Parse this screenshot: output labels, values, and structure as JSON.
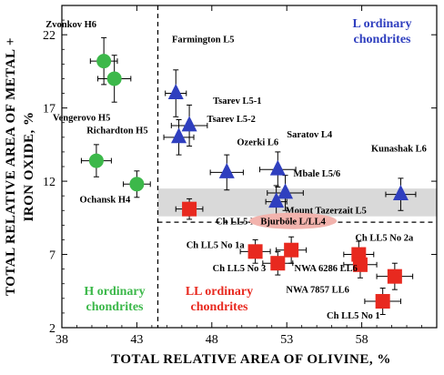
{
  "chart_data": {
    "type": "scatter",
    "xlabel": "TOTAL RELATIVE AREA OF OLIVINE, %",
    "ylabel_lines": [
      "TOTAL RELATIVE AREA OF METAL +",
      "IRON OXIDE, %"
    ],
    "xlim": [
      38,
      63
    ],
    "ylim": [
      2,
      24
    ],
    "xticks": [
      38,
      43,
      48,
      53,
      58
    ],
    "yticks": [
      2,
      7,
      12,
      17,
      22
    ],
    "grid": false,
    "reference_lines": {
      "vertical_x": 44.4,
      "horizontal_y": 9.2
    },
    "shaded_band": {
      "y_from": 9.6,
      "y_to": 11.5
    },
    "group_labels": [
      {
        "text_lines": [
          "H ordinary",
          "chondrites"
        ],
        "color": "#3cb84a"
      },
      {
        "text_lines": [
          "LL ordinary",
          "chondrites"
        ],
        "color": "#e8291f"
      },
      {
        "text_lines": [
          "L ordinary",
          "chondrites"
        ],
        "color": "#2f3fbf"
      }
    ],
    "series": [
      {
        "group": "H",
        "marker": "circle",
        "color": "#3cb84a",
        "points": [
          {
            "x": 40.8,
            "y": 20.2,
            "xerr": 0.9,
            "yerr": 1.6,
            "label": "Zvonkov H6"
          },
          {
            "x": 41.5,
            "y": 19.0,
            "xerr": 1.1,
            "yerr": 1.6,
            "label": "Vengerovo H5"
          },
          {
            "x": 40.3,
            "y": 13.4,
            "xerr": 1.0,
            "yerr": 1.1,
            "label": "Richardton H5"
          },
          {
            "x": 43.0,
            "y": 11.8,
            "xerr": 0.9,
            "yerr": 0.9,
            "label": "Ochansk H4"
          }
        ]
      },
      {
        "group": "L",
        "marker": "triangle",
        "color": "#2f3fbf",
        "points": [
          {
            "x": 45.6,
            "y": 18.0,
            "xerr": 0.7,
            "yerr": 1.6,
            "label": "Farmington L5"
          },
          {
            "x": 46.5,
            "y": 15.8,
            "xerr": 1.2,
            "yerr": 1.4,
            "label": "Tsarev L5-1"
          },
          {
            "x": 45.8,
            "y": 15.0,
            "xerr": 1.0,
            "yerr": 1.2,
            "label": "Tsarev L5-2"
          },
          {
            "x": 49.0,
            "y": 12.6,
            "xerr": 1.1,
            "yerr": 1.2,
            "label": "Ozerki L6"
          },
          {
            "x": 52.4,
            "y": 12.8,
            "xerr": 1.2,
            "yerr": 1.2,
            "label": "Saratov L4"
          },
          {
            "x": 52.9,
            "y": 11.2,
            "xerr": 1.2,
            "yerr": 1.2,
            "label": "Mbale L5/6"
          },
          {
            "x": 52.3,
            "y": 10.6,
            "xerr": 0.7,
            "yerr": 1.1,
            "label": "Mount Tazerzait L5"
          },
          {
            "x": 60.6,
            "y": 11.1,
            "xerr": 1.0,
            "yerr": 1.1,
            "label": "Kunashak L6"
          }
        ]
      },
      {
        "group": "LL",
        "marker": "square",
        "color": "#e8291f",
        "points": [
          {
            "x": 46.5,
            "y": 10.1,
            "xerr": 0.9,
            "yerr": 0.7,
            "label": "Ch LL5 No 2"
          },
          {
            "x": 50.9,
            "y": 7.2,
            "xerr": 1.0,
            "yerr": 0.8,
            "label": "Ch LL5 No 1a"
          },
          {
            "x": 52.4,
            "y": 6.4,
            "xerr": 1.0,
            "yerr": 0.8,
            "label": "Ch LL5 No 3"
          },
          {
            "x": 53.3,
            "y": 7.3,
            "xerr": 1.0,
            "yerr": 0.9,
            "label": "Bjurböle L/LL4"
          },
          {
            "x": 57.8,
            "y": 7.0,
            "xerr": 1.0,
            "yerr": 0.9,
            "label": "Ch LL5 No 2a"
          },
          {
            "x": 57.9,
            "y": 6.3,
            "xerr": 1.1,
            "yerr": 0.9,
            "label": "NWA 6286  LL6"
          },
          {
            "x": 60.2,
            "y": 5.5,
            "xerr": 1.2,
            "yerr": 0.9,
            "label": "NWA 7857  LL6"
          },
          {
            "x": 59.4,
            "y": 3.8,
            "xerr": 1.2,
            "yerr": 0.9,
            "label": "Ch LL5 No 1"
          }
        ]
      }
    ]
  }
}
